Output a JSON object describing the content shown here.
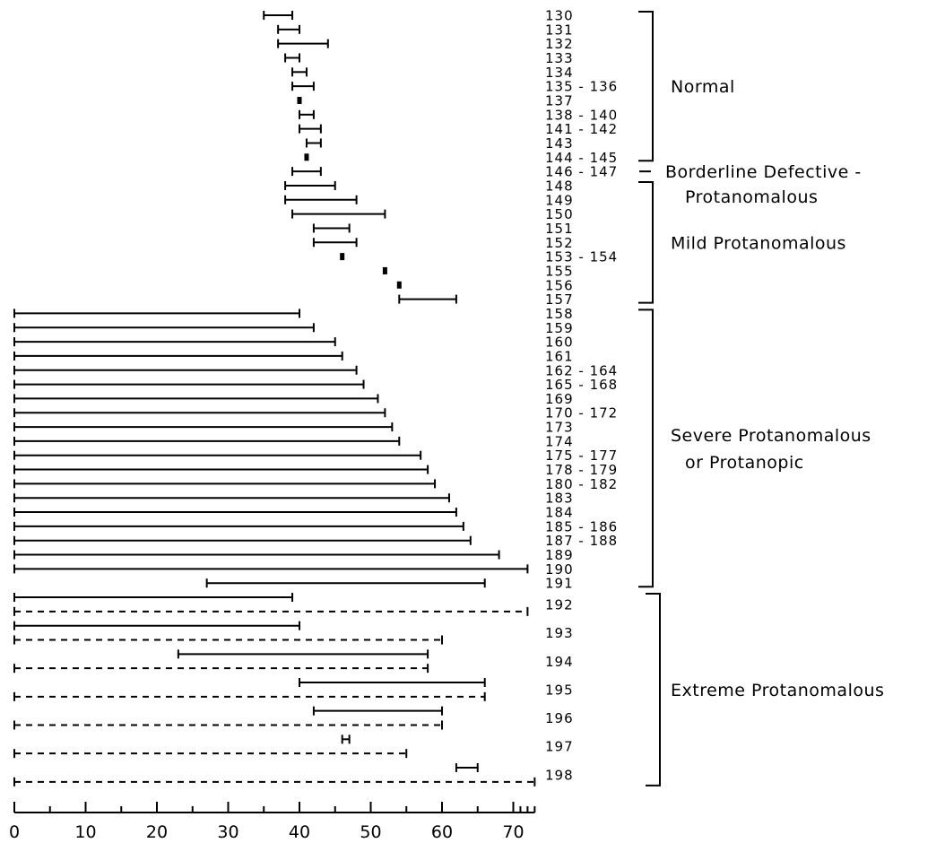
{
  "chart_data": {
    "type": "range",
    "xlim": [
      0,
      73
    ],
    "x_ticks": [
      0,
      10,
      20,
      30,
      40,
      50,
      60,
      70
    ],
    "x_extra_ticks": [
      71,
      72,
      73
    ],
    "line_colors": {
      "bar": "#000000",
      "bracket": "#000000"
    },
    "groups": [
      {
        "name": "Normal",
        "label_lines": [
          "Normal"
        ]
      },
      {
        "name": "Borderline Defective - Protanomalous",
        "label_lines": [
          "Borderline Defective -",
          "Protanomalous"
        ]
      },
      {
        "name": "Mild Protanomalous",
        "label_lines": [
          "Mild Protanomalous"
        ]
      },
      {
        "name": "Severe Protanomalous or Protanopic",
        "label_lines": [
          "Severe Protanomalous",
          "or Protanopic"
        ]
      },
      {
        "name": "Extreme Protanomalous",
        "label_lines": [
          "Extreme Protanomalous"
        ]
      }
    ],
    "subjects": [
      {
        "label": "130",
        "group": "Normal",
        "range": [
          35,
          39
        ],
        "style": "solid"
      },
      {
        "label": "131",
        "group": "Normal",
        "range": [
          37,
          40
        ],
        "style": "solid"
      },
      {
        "label": "132",
        "group": "Normal",
        "range": [
          37,
          44
        ],
        "style": "solid"
      },
      {
        "label": "133",
        "group": "Normal",
        "range": [
          38,
          40
        ],
        "style": "solid"
      },
      {
        "label": "134",
        "group": "Normal",
        "range": [
          39,
          41
        ],
        "style": "solid"
      },
      {
        "label": "135 - 136",
        "group": "Normal",
        "range": [
          39,
          42
        ],
        "style": "solid"
      },
      {
        "label": "137",
        "group": "Normal",
        "range": [
          40,
          40
        ],
        "style": "solid"
      },
      {
        "label": "138 - 140",
        "group": "Normal",
        "range": [
          40,
          42
        ],
        "style": "solid"
      },
      {
        "label": "141 - 142",
        "group": "Normal",
        "range": [
          40,
          43
        ],
        "style": "solid"
      },
      {
        "label": "143",
        "group": "Normal",
        "range": [
          41,
          43
        ],
        "style": "solid"
      },
      {
        "label": "144 - 145",
        "group": "Normal",
        "range": [
          41,
          41
        ],
        "style": "solid"
      },
      {
        "label": "146 - 147",
        "group": "Borderline Defective - Protanomalous",
        "range": [
          39,
          43
        ],
        "style": "solid"
      },
      {
        "label": "148",
        "group": "Mild Protanomalous",
        "range": [
          38,
          45
        ],
        "style": "solid"
      },
      {
        "label": "149",
        "group": "Mild Protanomalous",
        "range": [
          38,
          48
        ],
        "style": "solid"
      },
      {
        "label": "150",
        "group": "Mild Protanomalous",
        "range": [
          39,
          52
        ],
        "style": "solid"
      },
      {
        "label": "151",
        "group": "Mild Protanomalous",
        "range": [
          42,
          47
        ],
        "style": "solid"
      },
      {
        "label": "152",
        "group": "Mild Protanomalous",
        "range": [
          42,
          48
        ],
        "style": "solid"
      },
      {
        "label": "153 - 154",
        "group": "Mild Protanomalous",
        "range": [
          46,
          46
        ],
        "style": "solid"
      },
      {
        "label": "155",
        "group": "Mild Protanomalous",
        "range": [
          52,
          52
        ],
        "style": "solid"
      },
      {
        "label": "156",
        "group": "Mild Protanomalous",
        "range": [
          54,
          54
        ],
        "style": "solid"
      },
      {
        "label": "157",
        "group": "Mild Protanomalous",
        "range": [
          54,
          62
        ],
        "style": "solid"
      },
      {
        "label": "158",
        "group": "Severe Protanomalous or Protanopic",
        "range": [
          0,
          40
        ],
        "style": "solid"
      },
      {
        "label": "159",
        "group": "Severe Protanomalous or Protanopic",
        "range": [
          0,
          42
        ],
        "style": "solid"
      },
      {
        "label": "160",
        "group": "Severe Protanomalous or Protanopic",
        "range": [
          0,
          45
        ],
        "style": "solid"
      },
      {
        "label": "161",
        "group": "Severe Protanomalous or Protanopic",
        "range": [
          0,
          46
        ],
        "style": "solid"
      },
      {
        "label": "162 - 164",
        "group": "Severe Protanomalous or Protanopic",
        "range": [
          0,
          48
        ],
        "style": "solid"
      },
      {
        "label": "165 - 168",
        "group": "Severe Protanomalous or Protanopic",
        "range": [
          0,
          49
        ],
        "style": "solid"
      },
      {
        "label": "169",
        "group": "Severe Protanomalous or Protanopic",
        "range": [
          0,
          51
        ],
        "style": "solid"
      },
      {
        "label": "170 - 172",
        "group": "Severe Protanomalous or Protanopic",
        "range": [
          0,
          52
        ],
        "style": "solid"
      },
      {
        "label": "173",
        "group": "Severe Protanomalous or Protanopic",
        "range": [
          0,
          53
        ],
        "style": "solid"
      },
      {
        "label": "174",
        "group": "Severe Protanomalous or Protanopic",
        "range": [
          0,
          54
        ],
        "style": "solid"
      },
      {
        "label": "175 - 177",
        "group": "Severe Protanomalous or Protanopic",
        "range": [
          0,
          57
        ],
        "style": "solid"
      },
      {
        "label": "178 - 179",
        "group": "Severe Protanomalous or Protanopic",
        "range": [
          0,
          58
        ],
        "style": "solid"
      },
      {
        "label": "180 - 182",
        "group": "Severe Protanomalous or Protanopic",
        "range": [
          0,
          59
        ],
        "style": "solid"
      },
      {
        "label": "183",
        "group": "Severe Protanomalous or Protanopic",
        "range": [
          0,
          61
        ],
        "style": "solid"
      },
      {
        "label": "184",
        "group": "Severe Protanomalous or Protanopic",
        "range": [
          0,
          62
        ],
        "style": "solid"
      },
      {
        "label": "185 - 186",
        "group": "Severe Protanomalous or Protanopic",
        "range": [
          0,
          63
        ],
        "style": "solid"
      },
      {
        "label": "187 - 188",
        "group": "Severe Protanomalous or Protanopic",
        "range": [
          0,
          64
        ],
        "style": "solid"
      },
      {
        "label": "189",
        "group": "Severe Protanomalous or Protanopic",
        "range": [
          0,
          68
        ],
        "style": "solid"
      },
      {
        "label": "190",
        "group": "Severe Protanomalous or Protanopic",
        "range": [
          0,
          72
        ],
        "style": "solid"
      },
      {
        "label": "191",
        "group": "Severe Protanomalous or Protanopic",
        "range": [
          27,
          66
        ],
        "style": "solid"
      },
      {
        "label": "192",
        "group": "Extreme Protanomalous",
        "range": [
          0,
          39
        ],
        "range_dashed": [
          0,
          72
        ],
        "style": "pair"
      },
      {
        "label": "193",
        "group": "Extreme Protanomalous",
        "range": [
          0,
          40
        ],
        "range_dashed": [
          0,
          60
        ],
        "style": "pair"
      },
      {
        "label": "194",
        "group": "Extreme Protanomalous",
        "range": [
          23,
          58
        ],
        "range_dashed": [
          0,
          58
        ],
        "style": "pair"
      },
      {
        "label": "195",
        "group": "Extreme Protanomalous",
        "range": [
          40,
          66
        ],
        "range_dashed": [
          0,
          66
        ],
        "style": "pair"
      },
      {
        "label": "196",
        "group": "Extreme Protanomalous",
        "range": [
          42,
          60
        ],
        "range_dashed": [
          0,
          60
        ],
        "style": "pair"
      },
      {
        "label": "197",
        "group": "Extreme Protanomalous",
        "range": [
          46,
          47
        ],
        "range_dashed": [
          0,
          55
        ],
        "style": "pair"
      },
      {
        "label": "198",
        "group": "Extreme Protanomalous",
        "range": [
          62,
          65
        ],
        "range_dashed": [
          0,
          73
        ],
        "style": "pair"
      }
    ]
  }
}
